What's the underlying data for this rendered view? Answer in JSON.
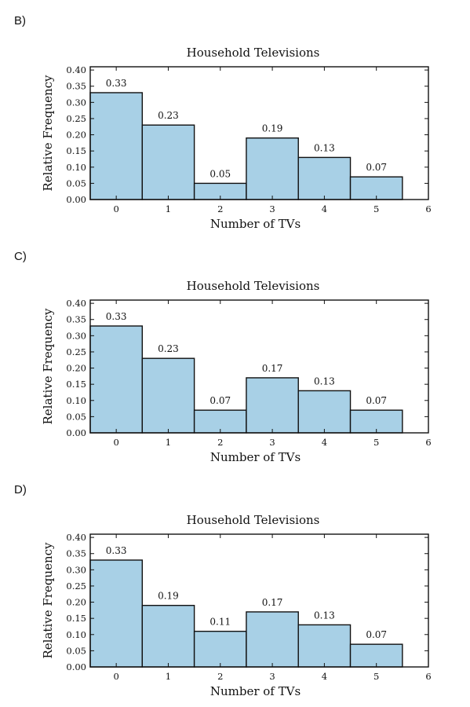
{
  "chart_data": [
    {
      "type": "bar",
      "option": "B)",
      "title": "Household Televisions",
      "xlabel": "Number of TVs",
      "ylabel": "Relative Frequency",
      "categories": [
        "0",
        "1",
        "2",
        "3",
        "4",
        "5"
      ],
      "values": [
        0.33,
        0.23,
        0.05,
        0.19,
        0.13,
        0.07
      ],
      "value_labels": [
        "0.33",
        "0.23",
        "0.05",
        "0.19",
        "0.13",
        "0.07"
      ],
      "xticks": [
        "0",
        "1",
        "2",
        "3",
        "4",
        "5",
        "6"
      ],
      "yticks": [
        "0.00",
        "0.05",
        "0.10",
        "0.15",
        "0.20",
        "0.25",
        "0.30",
        "0.35",
        "0.40"
      ],
      "xlim": [
        -0.5,
        6
      ],
      "ylim": [
        0,
        0.41
      ],
      "grid": false,
      "bar_color": "#a8d0e6"
    },
    {
      "type": "bar",
      "option": "C)",
      "title": "Household Televisions",
      "xlabel": "Number of TVs",
      "ylabel": "Relative Frequency",
      "categories": [
        "0",
        "1",
        "2",
        "3",
        "4",
        "5"
      ],
      "values": [
        0.33,
        0.23,
        0.07,
        0.17,
        0.13,
        0.07
      ],
      "value_labels": [
        "0.33",
        "0.23",
        "0.07",
        "0.17",
        "0.13",
        "0.07"
      ],
      "xticks": [
        "0",
        "1",
        "2",
        "3",
        "4",
        "5",
        "6"
      ],
      "yticks": [
        "0.00",
        "0.05",
        "0.10",
        "0.15",
        "0.20",
        "0.25",
        "0.30",
        "0.35",
        "0.40"
      ],
      "xlim": [
        -0.5,
        6
      ],
      "ylim": [
        0,
        0.41
      ],
      "grid": false,
      "bar_color": "#a8d0e6"
    },
    {
      "type": "bar",
      "option": "D)",
      "title": "Household Televisions",
      "xlabel": "Number of TVs",
      "ylabel": "Relative Frequency",
      "categories": [
        "0",
        "1",
        "2",
        "3",
        "4",
        "5"
      ],
      "values": [
        0.33,
        0.19,
        0.11,
        0.17,
        0.13,
        0.07
      ],
      "value_labels": [
        "0.33",
        "0.19",
        "0.11",
        "0.17",
        "0.13",
        "0.07"
      ],
      "xticks": [
        "0",
        "1",
        "2",
        "3",
        "4",
        "5",
        "6"
      ],
      "yticks": [
        "0.00",
        "0.05",
        "0.10",
        "0.15",
        "0.20",
        "0.25",
        "0.30",
        "0.35",
        "0.40"
      ],
      "xlim": [
        -0.5,
        6
      ],
      "ylim": [
        0,
        0.41
      ],
      "grid": false,
      "bar_color": "#a8d0e6"
    }
  ]
}
